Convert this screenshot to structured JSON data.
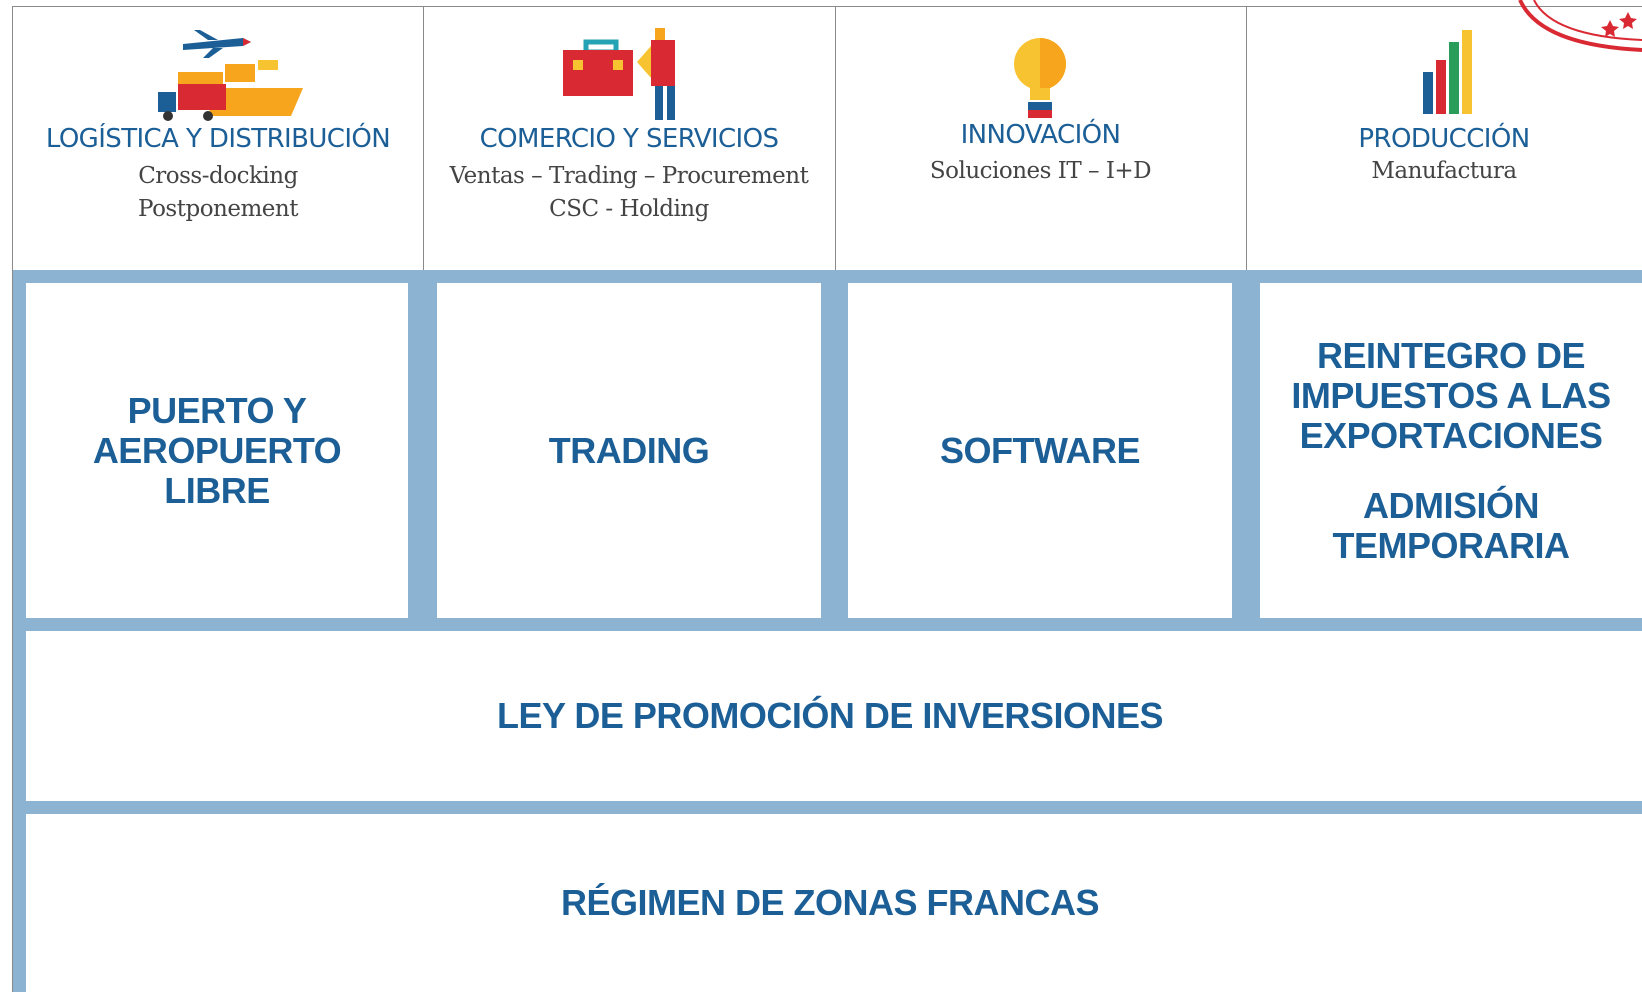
{
  "header": {
    "columns": [
      {
        "title": "LOGÍSTICA Y DISTRIBUCIÓN",
        "lines": [
          "Cross-docking",
          "Postponement"
        ]
      },
      {
        "title": "COMERCIO Y SERVICIOS",
        "lines": [
          "Ventas – Trading – Procurement",
          "CSC - Holding"
        ]
      },
      {
        "title": "INNOVACIÓN",
        "lines": [
          "Soluciones IT – I+D"
        ]
      },
      {
        "title": "PRODUCCIÓN",
        "lines": [
          "Manufactura"
        ]
      }
    ]
  },
  "boxes": [
    {
      "paragraphs": [
        [
          "PUERTO Y",
          "AEROPUERTO",
          "LIBRE"
        ]
      ]
    },
    {
      "paragraphs": [
        [
          "TRADING"
        ]
      ]
    },
    {
      "paragraphs": [
        [
          "SOFTWARE"
        ]
      ]
    },
    {
      "paragraphs": [
        [
          "REINTEGRO DE",
          "IMPUESTOS A LAS",
          "EXPORTACIONES"
        ],
        [
          "ADMISIÓN",
          "TEMPORARIA"
        ]
      ]
    }
  ],
  "wide_boxes": [
    "LEY DE PROMOCIÓN DE INVERSIONES",
    "RÉGIMEN DE ZONAS FRANCAS"
  ]
}
